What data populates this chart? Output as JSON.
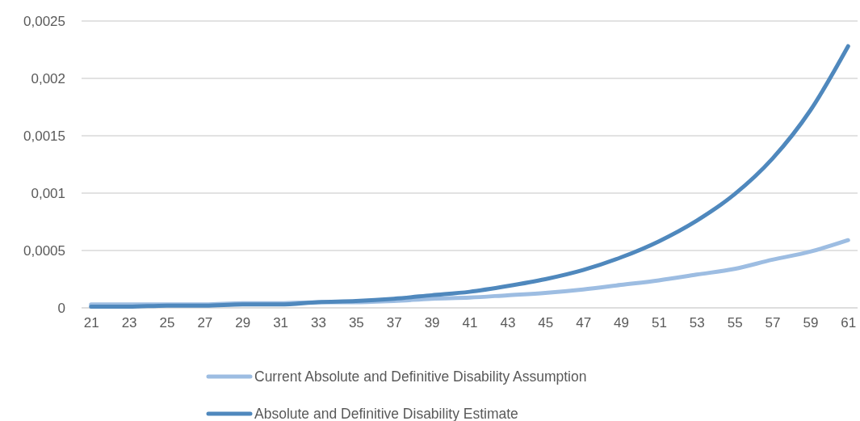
{
  "chart_data": {
    "type": "line",
    "x": [
      21,
      23,
      25,
      27,
      29,
      31,
      33,
      35,
      37,
      39,
      41,
      43,
      45,
      47,
      49,
      51,
      53,
      55,
      57,
      59,
      61
    ],
    "series": [
      {
        "name": "Current Absolute and Definitive Disability Assumption",
        "color": "#9dbde2",
        "values": [
          3e-05,
          3e-05,
          3e-05,
          3e-05,
          4e-05,
          4e-05,
          5e-05,
          5e-05,
          6e-05,
          8e-05,
          9e-05,
          0.00011,
          0.00013,
          0.00016,
          0.0002,
          0.00024,
          0.00029,
          0.00034,
          0.00042,
          0.00049,
          0.00059
        ]
      },
      {
        "name": "Absolute and Definitive Disability Estimate",
        "color": "#4f88bd",
        "values": [
          1e-05,
          1e-05,
          2e-05,
          2e-05,
          3e-05,
          3e-05,
          5e-05,
          6e-05,
          8e-05,
          0.00011,
          0.00014,
          0.00019,
          0.00025,
          0.00033,
          0.00044,
          0.00058,
          0.00076,
          0.00099,
          0.0013,
          0.00172,
          0.00228
        ]
      }
    ],
    "xlim": [
      20.5,
      61.5
    ],
    "xticks": [
      21,
      23,
      25,
      27,
      29,
      31,
      33,
      35,
      37,
      39,
      41,
      43,
      45,
      47,
      49,
      51,
      53,
      55,
      57,
      59,
      61
    ],
    "ylim": [
      0,
      0.0025
    ],
    "yticks": [
      0,
      {
        "value": 0.0005,
        "label": "0,0005"
      },
      {
        "value": 0.001,
        "label": "0,001"
      },
      {
        "value": 0.0015,
        "label": "0,0015"
      },
      {
        "value": 0.002,
        "label": "0,002"
      },
      {
        "value": 0.0025,
        "label": "0,0025"
      }
    ],
    "grid": "y",
    "legend": "bottom",
    "marker": "none",
    "line_style": "solid"
  }
}
